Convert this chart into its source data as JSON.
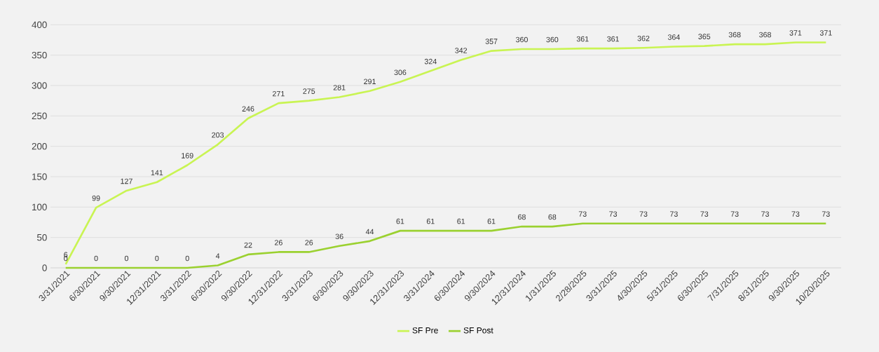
{
  "chart_data": {
    "type": "line",
    "categories": [
      "3/31/2021",
      "6/30/2021",
      "9/30/2021",
      "12/31/2021",
      "3/31/2022",
      "6/30/2022",
      "9/30/2022",
      "12/31/2022",
      "3/31/2023",
      "6/30/2023",
      "9/30/2023",
      "12/31/2023",
      "3/31/2024",
      "6/30/2024",
      "9/30/2024",
      "12/31/2024",
      "1/31/2025",
      "2/28/2025",
      "3/31/2025",
      "4/30/2025",
      "5/31/2025",
      "6/30/2025",
      "7/31/2025",
      "8/31/2025",
      "9/30/2025",
      "10/20/2025"
    ],
    "series": [
      {
        "name": "SF Pre",
        "color": "#c9f453",
        "values": [
          6,
          99,
          127,
          141,
          169,
          203,
          246,
          271,
          275,
          281,
          291,
          306,
          324,
          342,
          357,
          360,
          360,
          361,
          361,
          362,
          364,
          365,
          368,
          368,
          371,
          371
        ]
      },
      {
        "name": "SF Post",
        "color": "#9bd130",
        "values": [
          0,
          0,
          0,
          0,
          0,
          4,
          22,
          26,
          26,
          36,
          44,
          61,
          61,
          61,
          61,
          68,
          68,
          73,
          73,
          73,
          73,
          73,
          73,
          73,
          73,
          73
        ]
      }
    ],
    "ylim": [
      0,
      400
    ],
    "yticks": [
      0,
      50,
      100,
      150,
      200,
      250,
      300,
      350,
      400
    ],
    "grid": "y",
    "legend": "bottom",
    "data_labels": true,
    "marker": "none",
    "line_style": "solid"
  }
}
